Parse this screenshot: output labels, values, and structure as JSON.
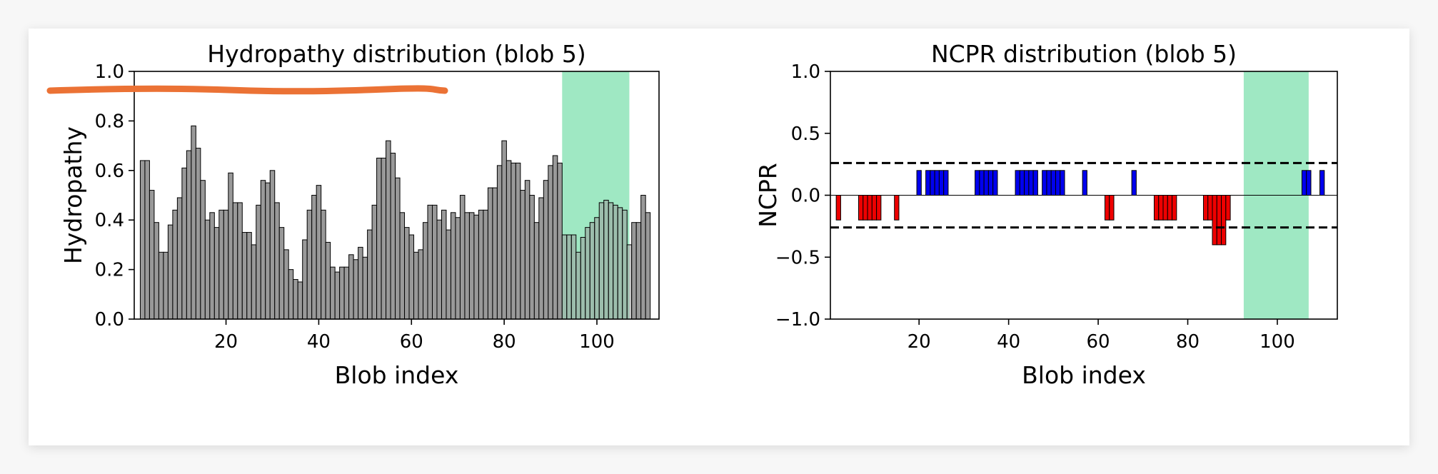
{
  "colors": {
    "hydropathy_bar": "#999999",
    "highlight": "#9fe8c3",
    "positive": "#0000ee",
    "negative": "#ee0000",
    "annotation_stroke": "#eb7235"
  },
  "chart_data": [
    {
      "type": "bar",
      "title": "Hydropathy distribution (blob 5)",
      "xlabel": "Blob index",
      "ylabel": "Hydropathy",
      "xlim": [
        0.2,
        113.4
      ],
      "ylim": [
        0.0,
        1.0
      ],
      "xticks": [
        20,
        40,
        60,
        80,
        100
      ],
      "yticks": [
        0.0,
        0.2,
        0.4,
        0.6,
        0.8,
        1.0
      ],
      "ytick_labels": [
        "0.0",
        "0.2",
        "0.4",
        "0.6",
        "0.8",
        "1.0"
      ],
      "highlight_range": [
        92.5,
        107.0
      ],
      "x_start": 2,
      "values": [
        0.64,
        0.64,
        0.52,
        0.39,
        0.27,
        0.27,
        0.38,
        0.44,
        0.49,
        0.61,
        0.68,
        0.78,
        0.69,
        0.56,
        0.4,
        0.43,
        0.37,
        0.44,
        0.44,
        0.59,
        0.47,
        0.47,
        0.35,
        0.35,
        0.3,
        0.46,
        0.56,
        0.55,
        0.6,
        0.47,
        0.37,
        0.28,
        0.2,
        0.16,
        0.15,
        0.32,
        0.44,
        0.5,
        0.54,
        0.44,
        0.31,
        0.21,
        0.19,
        0.21,
        0.21,
        0.26,
        0.24,
        0.29,
        0.25,
        0.36,
        0.46,
        0.65,
        0.65,
        0.72,
        0.67,
        0.57,
        0.43,
        0.37,
        0.34,
        0.27,
        0.28,
        0.39,
        0.46,
        0.46,
        0.4,
        0.44,
        0.36,
        0.43,
        0.41,
        0.5,
        0.43,
        0.43,
        0.42,
        0.44,
        0.44,
        0.53,
        0.53,
        0.62,
        0.72,
        0.64,
        0.63,
        0.63,
        0.52,
        0.56,
        0.5,
        0.39,
        0.49,
        0.56,
        0.62,
        0.66,
        0.63,
        0.34,
        0.34,
        0.34,
        0.27,
        0.33,
        0.37,
        0.39,
        0.41,
        0.47,
        0.48,
        0.47,
        0.46,
        0.45,
        0.44,
        0.3,
        0.39,
        0.39,
        0.5,
        0.43
      ]
    },
    {
      "type": "bar",
      "title": "NCPR distribution (blob 5)",
      "xlabel": "Blob index",
      "ylabel": "NCPR",
      "xlim": [
        0.2,
        113.4
      ],
      "ylim": [
        -1.0,
        1.0
      ],
      "xticks": [
        20,
        40,
        60,
        80,
        100
      ],
      "yticks": [
        -1.0,
        -0.5,
        0.0,
        0.5,
        1.0
      ],
      "ytick_labels": [
        "−1.0",
        "−0.5",
        "0.0",
        "0.5",
        "1.0"
      ],
      "highlight_range": [
        92.5,
        107.0
      ],
      "reference_lines": [
        0.26,
        -0.26
      ],
      "x_start": 2,
      "values": [
        -0.2,
        0,
        0,
        0,
        0,
        -0.2,
        -0.2,
        -0.2,
        -0.2,
        -0.2,
        0,
        0,
        0,
        -0.2,
        0,
        0,
        0,
        0,
        0.2,
        0,
        0.2,
        0.2,
        0.2,
        0.2,
        0.2,
        0,
        0,
        0,
        0,
        0,
        0,
        0.2,
        0.2,
        0.2,
        0.2,
        0.2,
        0,
        0,
        0,
        0,
        0.2,
        0.2,
        0.2,
        0.2,
        0.2,
        0,
        0.2,
        0.2,
        0.2,
        0.2,
        0.2,
        0,
        0,
        0,
        0,
        0.2,
        0,
        0,
        0,
        0,
        -0.2,
        -0.2,
        0,
        0,
        0,
        0,
        0.2,
        0,
        0,
        0,
        0,
        -0.2,
        -0.2,
        -0.2,
        -0.2,
        -0.2,
        0,
        0,
        0,
        0,
        0,
        0,
        -0.2,
        -0.2,
        -0.4,
        -0.4,
        -0.4,
        -0.2,
        0,
        0,
        0,
        0,
        0,
        0,
        0,
        0,
        0,
        0,
        0,
        0,
        0,
        0,
        0,
        0,
        0.2,
        0.2,
        0,
        0,
        0.2,
        0
      ]
    }
  ]
}
